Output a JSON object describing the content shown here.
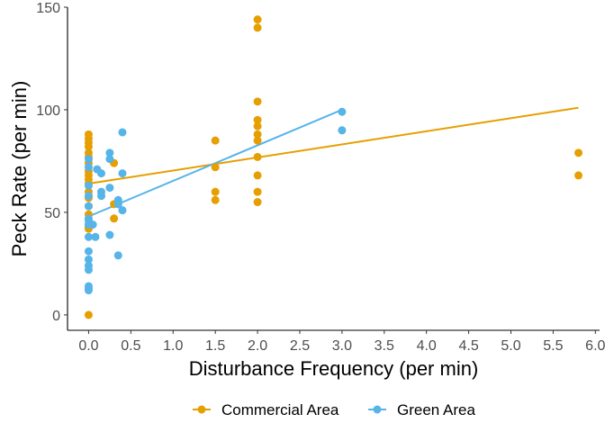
{
  "chart_data": {
    "type": "scatter",
    "title": "",
    "xlabel": "Disturbance Frequency (per min)",
    "ylabel": "Peck Rate (per min)",
    "xlim": [
      -0.25,
      6.05
    ],
    "ylim": [
      -7.5,
      150
    ],
    "x_ticks": [
      0,
      0.5,
      1,
      1.5,
      2,
      2.5,
      3,
      3.5,
      4,
      4.5,
      5,
      5.5,
      6
    ],
    "x_tick_labels": [
      "0.0",
      "0.5",
      "1.0",
      "1.5",
      "2.0",
      "2.5",
      "3.0",
      "3.5",
      "4.0",
      "4.5",
      "5.0",
      "5.5",
      "6.0"
    ],
    "y_ticks": [
      0,
      50,
      100,
      150
    ],
    "y_tick_labels": [
      "0",
      "50",
      "100",
      "150"
    ],
    "grid": false,
    "legend_position": "bottom",
    "series": [
      {
        "name": "Commercial Area",
        "color": "#E69F00",
        "points": [
          [
            0,
            88
          ],
          [
            0,
            86
          ],
          [
            0,
            84
          ],
          [
            0,
            82
          ],
          [
            0,
            79
          ],
          [
            0,
            77
          ],
          [
            0,
            74
          ],
          [
            0,
            70
          ],
          [
            0,
            68
          ],
          [
            0,
            66
          ],
          [
            0,
            64
          ],
          [
            0,
            60
          ],
          [
            0,
            58
          ],
          [
            0,
            57
          ],
          [
            0,
            53
          ],
          [
            0,
            49
          ],
          [
            0,
            43
          ],
          [
            0,
            42
          ],
          [
            0,
            0
          ],
          [
            0.3,
            74
          ],
          [
            0.3,
            54
          ],
          [
            0.3,
            47
          ],
          [
            1.5,
            85
          ],
          [
            1.5,
            72
          ],
          [
            1.5,
            60
          ],
          [
            1.5,
            56
          ],
          [
            2,
            144
          ],
          [
            2,
            140
          ],
          [
            2,
            104
          ],
          [
            2,
            95
          ],
          [
            2,
            92
          ],
          [
            2,
            88
          ],
          [
            2,
            85
          ],
          [
            2,
            77
          ],
          [
            2,
            68
          ],
          [
            2,
            60
          ],
          [
            2,
            55
          ],
          [
            5.8,
            79
          ],
          [
            5.8,
            68
          ]
        ],
        "fit": [
          [
            0,
            64
          ],
          [
            5.8,
            101
          ]
        ]
      },
      {
        "name": "Green Area",
        "color": "#56B4E9",
        "points": [
          [
            0,
            76
          ],
          [
            0,
            72
          ],
          [
            0,
            63
          ],
          [
            0,
            58
          ],
          [
            0,
            53
          ],
          [
            0,
            47
          ],
          [
            0,
            46
          ],
          [
            0,
            44
          ],
          [
            0,
            38
          ],
          [
            0,
            31
          ],
          [
            0,
            27
          ],
          [
            0,
            24
          ],
          [
            0,
            22
          ],
          [
            0,
            14
          ],
          [
            0,
            13
          ],
          [
            0,
            12
          ],
          [
            0.05,
            44
          ],
          [
            0.08,
            38
          ],
          [
            0.1,
            71
          ],
          [
            0.15,
            69
          ],
          [
            0.15,
            60
          ],
          [
            0.15,
            58
          ],
          [
            0.25,
            79
          ],
          [
            0.25,
            76
          ],
          [
            0.25,
            62
          ],
          [
            0.25,
            39
          ],
          [
            0.35,
            56
          ],
          [
            0.35,
            54
          ],
          [
            0.35,
            29
          ],
          [
            0.4,
            89
          ],
          [
            0.4,
            69
          ],
          [
            0.4,
            51
          ],
          [
            3,
            99
          ],
          [
            3,
            90
          ]
        ],
        "fit": [
          [
            0,
            48
          ],
          [
            3,
            100
          ]
        ]
      }
    ]
  }
}
